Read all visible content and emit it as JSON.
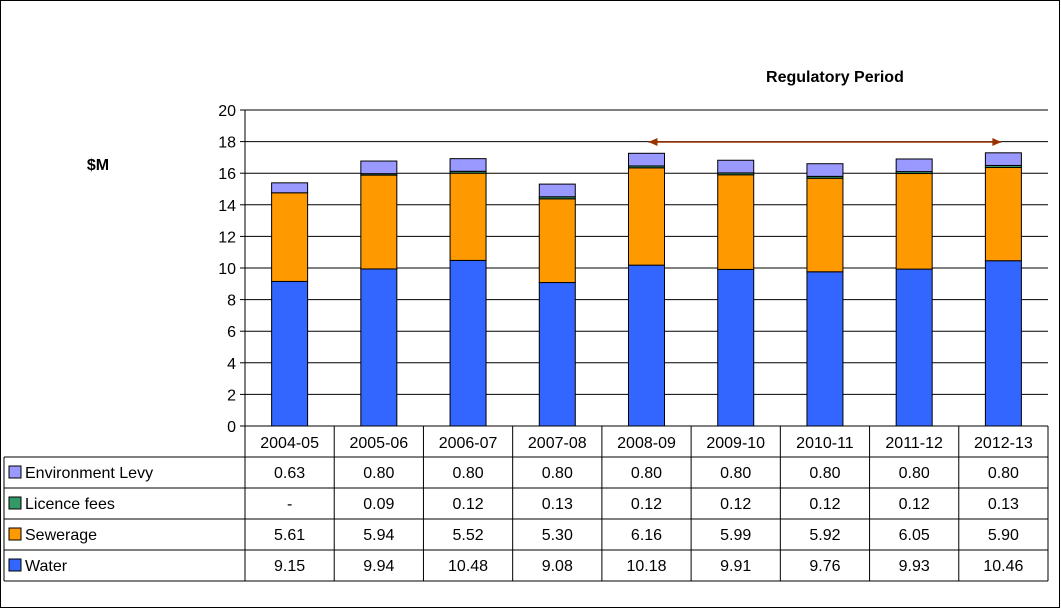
{
  "chart_data": {
    "type": "bar",
    "stacked": true,
    "categories": [
      "2004-05",
      "2005-06",
      "2006-07",
      "2007-08",
      "2008-09",
      "2009-10",
      "2010-11",
      "2011-12",
      "2012-13"
    ],
    "series": [
      {
        "name": "Water",
        "color": "#3366FF",
        "values": [
          9.15,
          9.94,
          10.48,
          9.08,
          10.18,
          9.91,
          9.76,
          9.93,
          10.46
        ],
        "labels": [
          "9.15",
          "9.94",
          "10.48",
          "9.08",
          "10.18",
          "9.91",
          "9.76",
          "9.93",
          "10.46"
        ]
      },
      {
        "name": "Sewerage",
        "color": "#FF9900",
        "values": [
          5.61,
          5.94,
          5.52,
          5.3,
          6.16,
          5.99,
          5.92,
          6.05,
          5.9
        ],
        "labels": [
          "5.61",
          "5.94",
          "5.52",
          "5.30",
          "6.16",
          "5.99",
          "5.92",
          "6.05",
          "5.90"
        ]
      },
      {
        "name": "Licence fees",
        "color": "#339966",
        "values": [
          0,
          0.09,
          0.12,
          0.13,
          0.12,
          0.12,
          0.12,
          0.12,
          0.13
        ],
        "labels": [
          "-",
          "0.09",
          "0.12",
          "0.13",
          "0.12",
          "0.12",
          "0.12",
          "0.12",
          "0.13"
        ]
      },
      {
        "name": "Environment Levy",
        "color": "#9999FF",
        "values": [
          0.63,
          0.8,
          0.8,
          0.8,
          0.8,
          0.8,
          0.8,
          0.8,
          0.8
        ],
        "labels": [
          "0.63",
          "0.80",
          "0.80",
          "0.80",
          "0.80",
          "0.80",
          "0.80",
          "0.80",
          "0.80"
        ]
      }
    ],
    "table_row_order": [
      "Environment Levy",
      "Licence fees",
      "Sewerage",
      "Water"
    ],
    "ylabel": "$M",
    "ylim": [
      0,
      20
    ],
    "yticks": [
      "0",
      "2",
      "4",
      "6",
      "8",
      "10",
      "12",
      "14",
      "16",
      "18",
      "20"
    ],
    "grid": true,
    "annotation": {
      "text": "Regulatory Period",
      "from": "2008-09",
      "to": "2012-13"
    }
  }
}
